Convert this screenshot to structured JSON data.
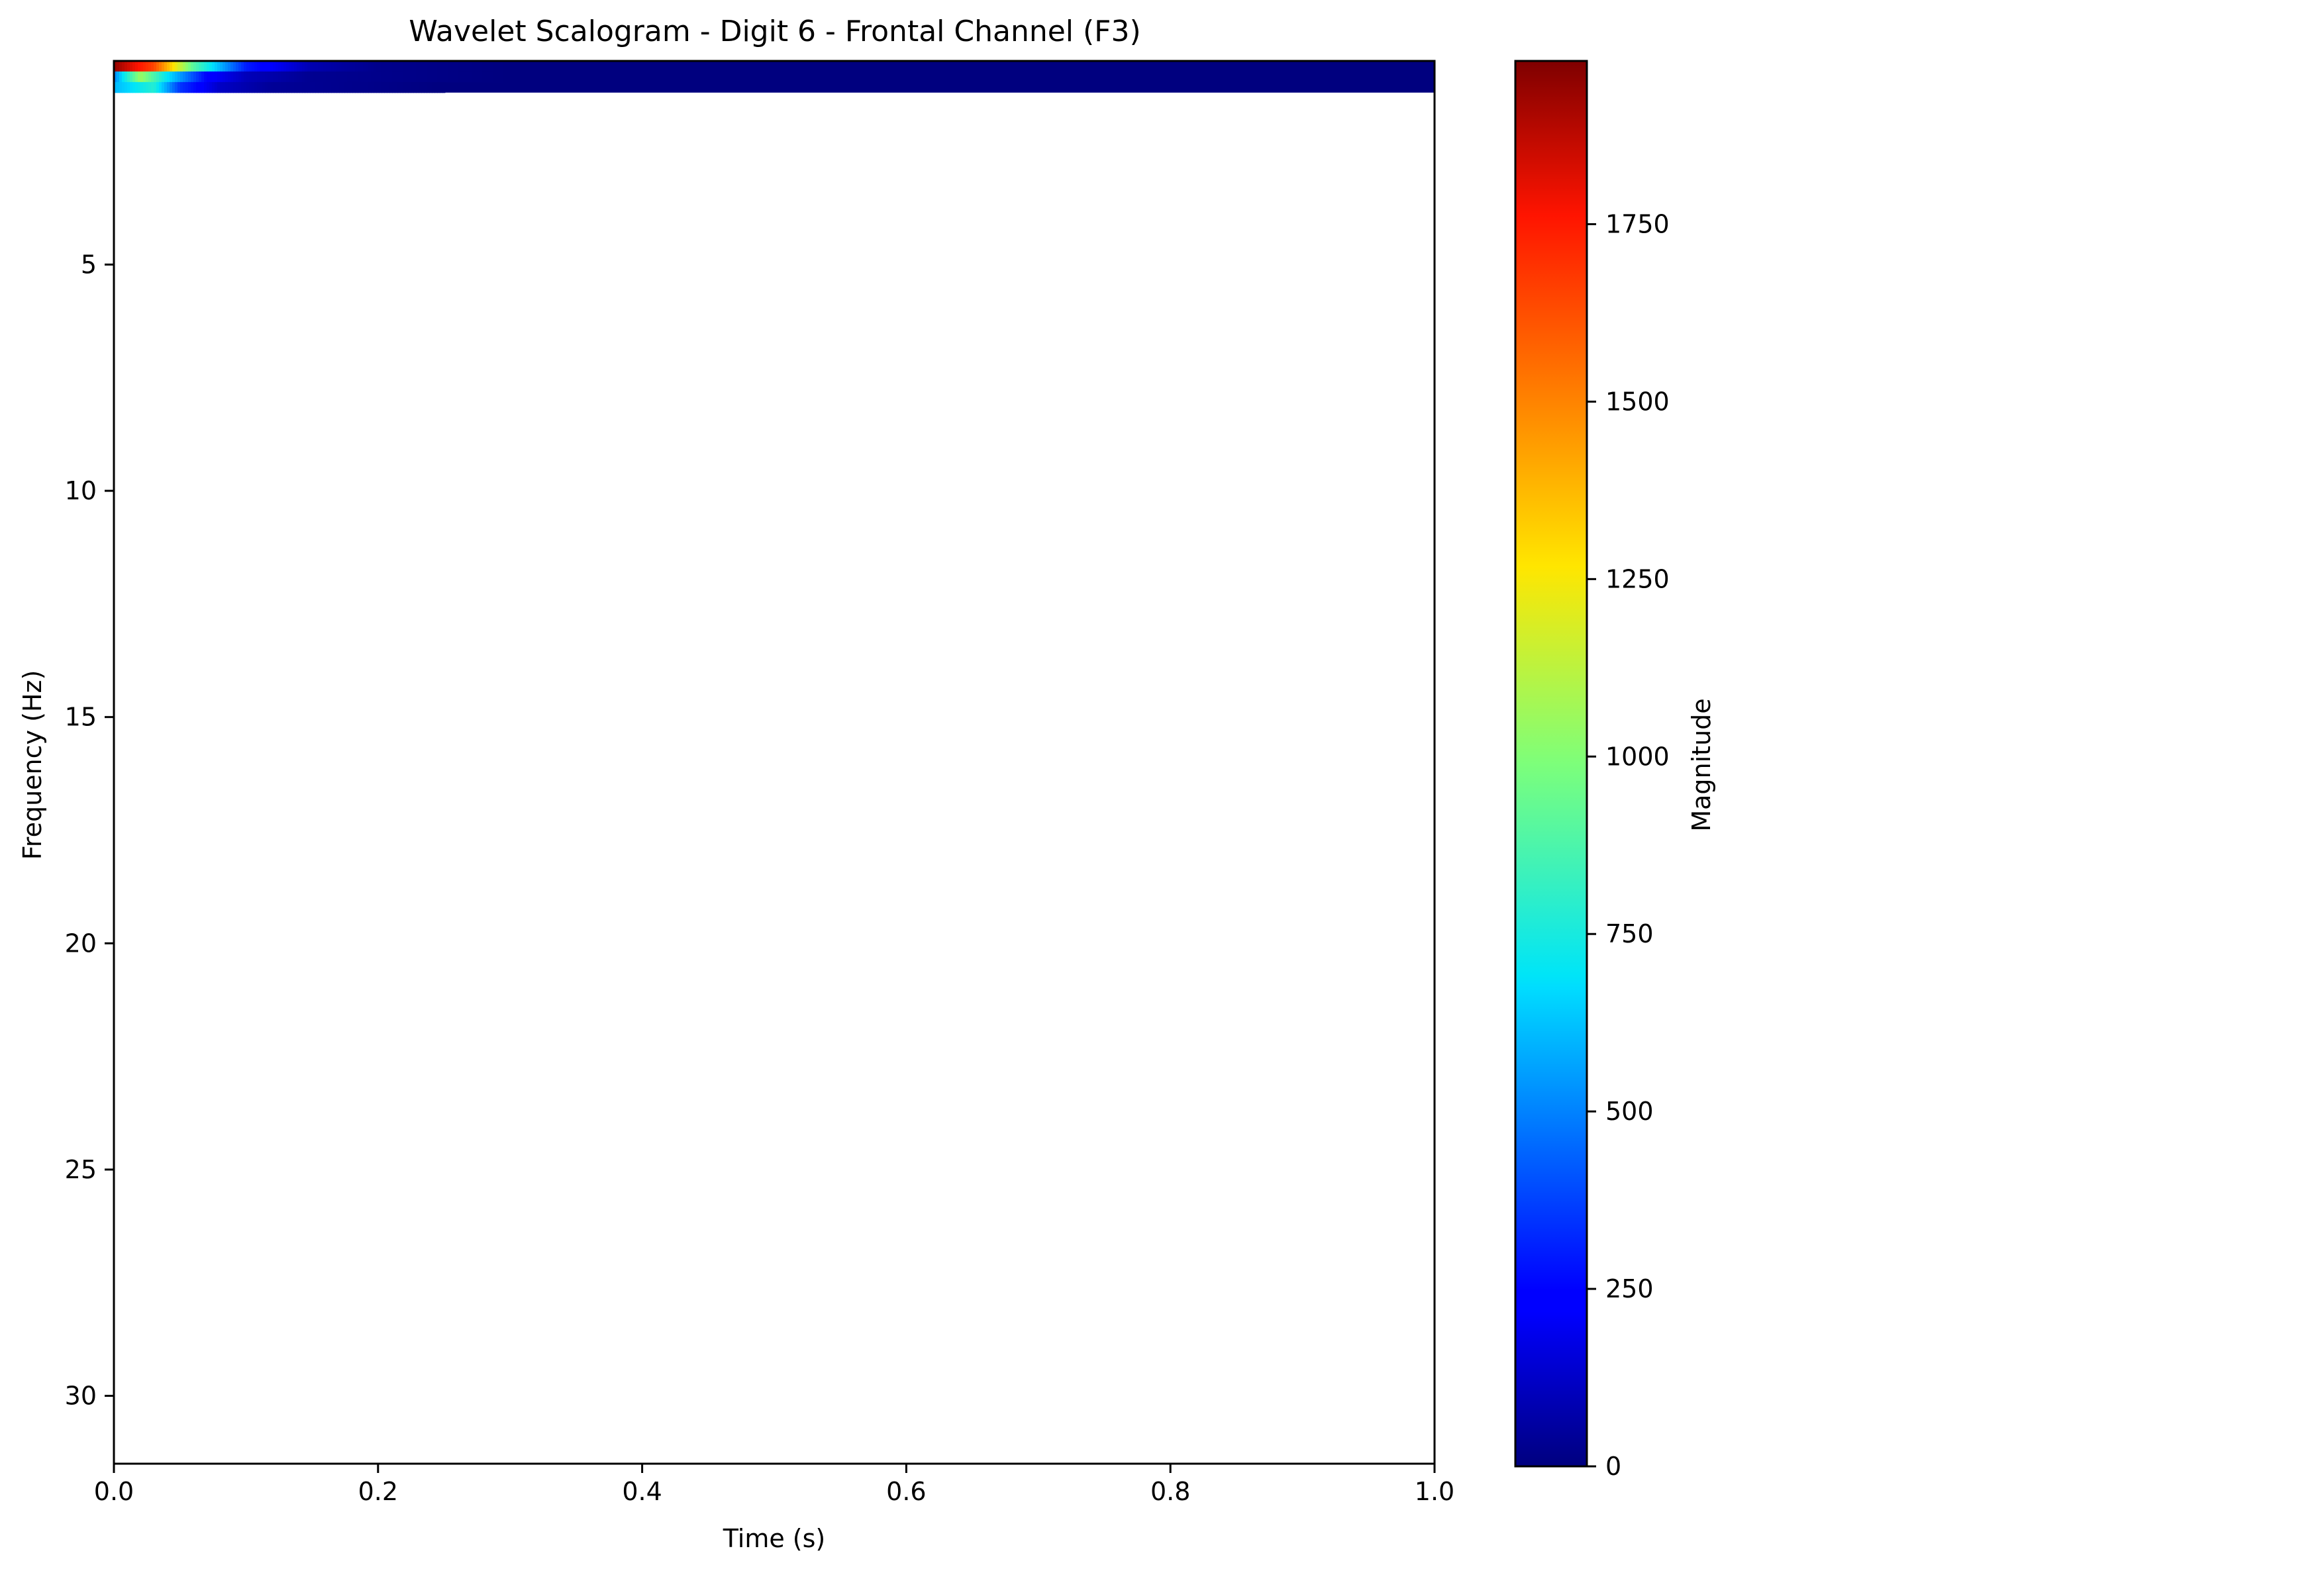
{
  "chart_data": {
    "type": "heatmap",
    "title": "Wavelet Scalogram - Digit 6 - Frontal Channel (F3)",
    "xlabel": "Time (s)",
    "ylabel": "Frequency (Hz)",
    "xlim": [
      0.0,
      1.0
    ],
    "ylim": [
      31.5,
      0.5
    ],
    "y_inverted": true,
    "x_ticks": [
      0.0,
      0.2,
      0.4,
      0.6,
      0.8,
      1.0
    ],
    "x_tick_labels": [
      "0.0",
      "0.2",
      "0.4",
      "0.6",
      "0.8",
      "1.0"
    ],
    "y_ticks": [
      5,
      10,
      15,
      20,
      25,
      30
    ],
    "y_tick_labels": [
      "5",
      "10",
      "15",
      "20",
      "25",
      "30"
    ],
    "grid": false,
    "colormap": "jet",
    "colorbar": {
      "label": "Magnitude",
      "vmin": 0,
      "vmax": 1980,
      "ticks": [
        0,
        250,
        500,
        750,
        1000,
        1250,
        1500,
        1750
      ],
      "tick_labels": [
        "0",
        "250",
        "500",
        "750",
        "1000",
        "1250",
        "1500",
        "1750"
      ]
    },
    "data_extent": {
      "frequency_range_hz": [
        0.5,
        1.2
      ],
      "time_range_s": [
        0.0,
        1.0
      ],
      "background_magnitude": 0
    },
    "rows": [
      {
        "frequency_hz": 0.6,
        "magnitude": [
          [
            0.0,
            1950
          ],
          [
            0.03,
            1650
          ],
          [
            0.06,
            900
          ],
          [
            0.1,
            300
          ],
          [
            0.15,
            80
          ],
          [
            0.2,
            20
          ],
          [
            0.3,
            0
          ],
          [
            1.0,
            0
          ]
        ]
      },
      {
        "frequency_hz": 0.8,
        "magnitude": [
          [
            0.0,
            500
          ],
          [
            0.02,
            1050
          ],
          [
            0.04,
            700
          ],
          [
            0.07,
            250
          ],
          [
            0.1,
            100
          ],
          [
            0.15,
            30
          ],
          [
            0.3,
            0
          ],
          [
            1.0,
            0
          ]
        ]
      },
      {
        "frequency_hz": 1.0,
        "magnitude": [
          [
            0.0,
            600
          ],
          [
            0.03,
            780
          ],
          [
            0.05,
            350
          ],
          [
            0.08,
            120
          ],
          [
            0.12,
            40
          ],
          [
            0.25,
            0
          ],
          [
            1.0,
            0
          ]
        ]
      }
    ]
  }
}
